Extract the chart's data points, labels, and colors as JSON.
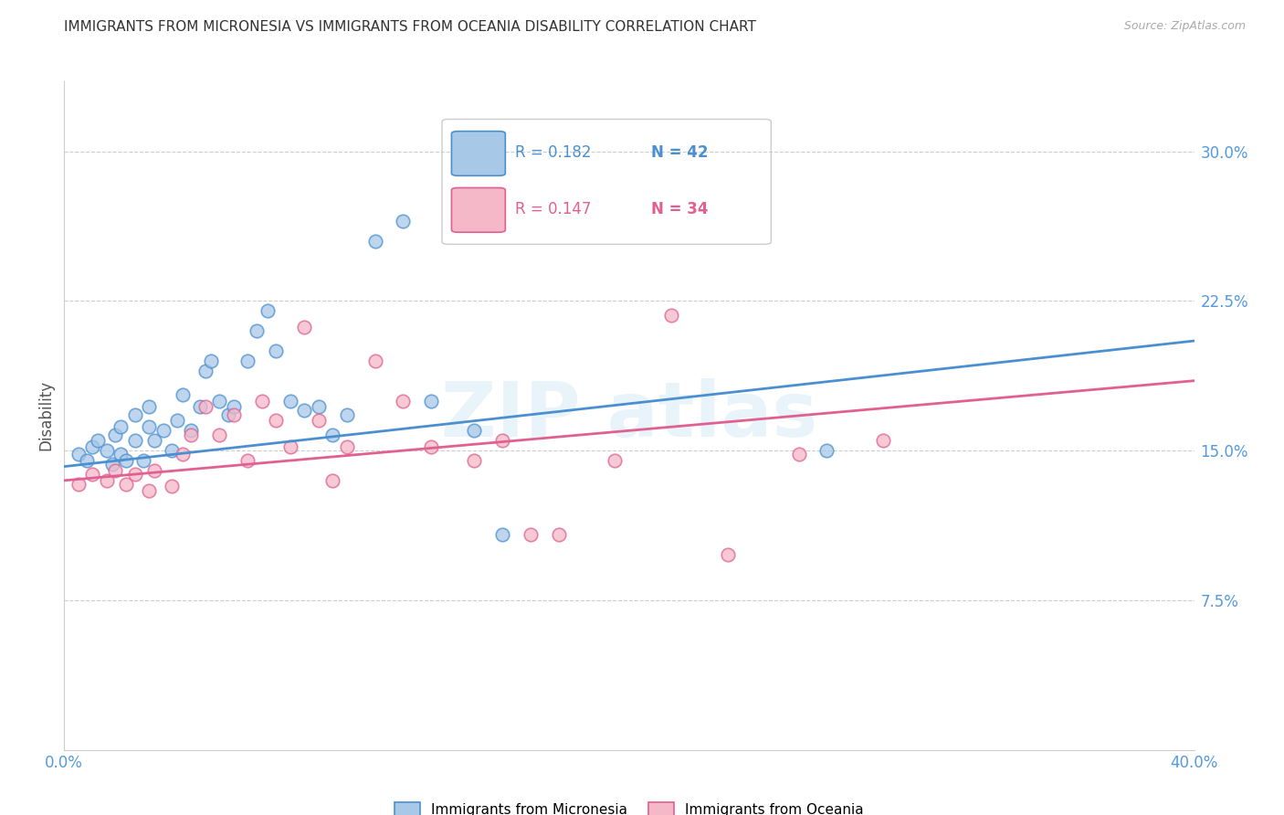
{
  "title": "IMMIGRANTS FROM MICRONESIA VS IMMIGRANTS FROM OCEANIA DISABILITY CORRELATION CHART",
  "source": "Source: ZipAtlas.com",
  "ylabel": "Disability",
  "ytick_labels": [
    "30.0%",
    "22.5%",
    "15.0%",
    "7.5%"
  ],
  "ytick_values": [
    0.3,
    0.225,
    0.15,
    0.075
  ],
  "xlim": [
    0.0,
    0.4
  ],
  "ylim": [
    0.0,
    0.335
  ],
  "legend_blue_r": "0.182",
  "legend_blue_n": "42",
  "legend_pink_r": "0.147",
  "legend_pink_n": "34",
  "label_blue": "Immigrants from Micronesia",
  "label_pink": "Immigrants from Oceania",
  "blue_color": "#a8c8e8",
  "pink_color": "#f4b8c8",
  "blue_edge_color": "#4a90d0",
  "pink_edge_color": "#e06090",
  "blue_line_color": "#4a90d0",
  "pink_line_color": "#e06090",
  "title_color": "#333333",
  "axis_tick_color": "#5599dd",
  "blue_scatter_x": [
    0.005,
    0.008,
    0.01,
    0.012,
    0.015,
    0.017,
    0.018,
    0.02,
    0.02,
    0.022,
    0.025,
    0.025,
    0.028,
    0.03,
    0.03,
    0.032,
    0.035,
    0.038,
    0.04,
    0.042,
    0.045,
    0.048,
    0.05,
    0.052,
    0.055,
    0.058,
    0.06,
    0.065,
    0.068,
    0.072,
    0.075,
    0.08,
    0.085,
    0.09,
    0.095,
    0.1,
    0.11,
    0.12,
    0.13,
    0.145,
    0.155,
    0.27
  ],
  "blue_scatter_y": [
    0.148,
    0.145,
    0.152,
    0.155,
    0.15,
    0.143,
    0.158,
    0.148,
    0.162,
    0.145,
    0.155,
    0.168,
    0.145,
    0.162,
    0.172,
    0.155,
    0.16,
    0.15,
    0.165,
    0.178,
    0.16,
    0.172,
    0.19,
    0.195,
    0.175,
    0.168,
    0.172,
    0.195,
    0.21,
    0.22,
    0.2,
    0.175,
    0.17,
    0.172,
    0.158,
    0.168,
    0.255,
    0.265,
    0.175,
    0.16,
    0.108,
    0.15
  ],
  "pink_scatter_x": [
    0.005,
    0.01,
    0.015,
    0.018,
    0.022,
    0.025,
    0.03,
    0.032,
    0.038,
    0.042,
    0.045,
    0.05,
    0.055,
    0.06,
    0.065,
    0.07,
    0.075,
    0.08,
    0.085,
    0.09,
    0.095,
    0.1,
    0.11,
    0.12,
    0.13,
    0.145,
    0.155,
    0.165,
    0.175,
    0.195,
    0.215,
    0.235,
    0.26,
    0.29
  ],
  "pink_scatter_y": [
    0.133,
    0.138,
    0.135,
    0.14,
    0.133,
    0.138,
    0.13,
    0.14,
    0.132,
    0.148,
    0.158,
    0.172,
    0.158,
    0.168,
    0.145,
    0.175,
    0.165,
    0.152,
    0.212,
    0.165,
    0.135,
    0.152,
    0.195,
    0.175,
    0.152,
    0.145,
    0.155,
    0.108,
    0.108,
    0.145,
    0.218,
    0.098,
    0.148,
    0.155
  ],
  "blue_line_y_start": 0.142,
  "blue_line_y_end": 0.205,
  "pink_line_y_start": 0.135,
  "pink_line_y_end": 0.185
}
